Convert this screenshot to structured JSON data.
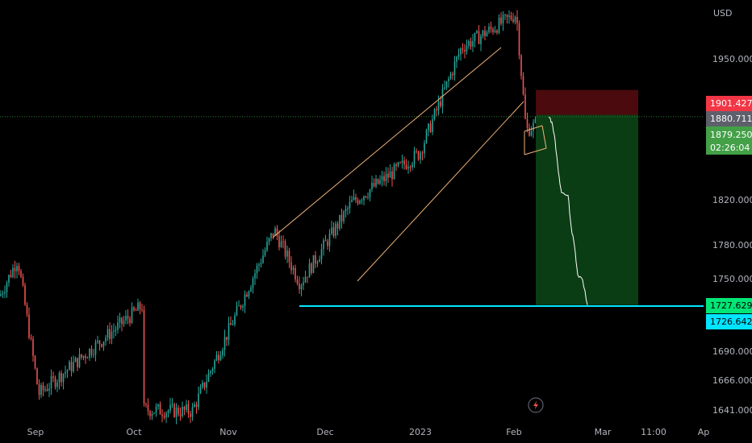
{
  "chart_data": {
    "type": "candlestick",
    "currency": "USD",
    "y_axis_ticks": [
      "1950.000",
      "1820.000",
      "1780.000",
      "1750.000",
      "1690.000",
      "1666.000",
      "1641.000"
    ],
    "x_axis_ticks": [
      "Sep",
      "Oct",
      "Nov",
      "Dec",
      "2023",
      "Feb",
      "Mar",
      "11:00",
      "Ap"
    ],
    "price_range": [
      1636,
      1968
    ],
    "anchors": [
      {
        "label": "Sep",
        "value": 1735
      },
      {
        "label": "Sep",
        "value": 1765
      },
      {
        "label": "Oct",
        "value": 1656
      },
      {
        "label": "Oct",
        "value": 1728
      },
      {
        "label": "Oct",
        "value": 1644
      },
      {
        "label": "Nov",
        "value": 1642
      },
      {
        "label": "Nov",
        "value": 1788
      },
      {
        "label": "Dec",
        "value": 1745
      },
      {
        "label": "Dec",
        "value": 1810
      },
      {
        "label": "2023",
        "value": 1850
      },
      {
        "label": "2023",
        "value": 1935
      },
      {
        "label": "Feb",
        "value": 1962
      },
      {
        "label": "Feb",
        "value": 1868
      },
      {
        "label": "Feb",
        "value": 1879
      }
    ],
    "projection": [
      1879,
      1875,
      1860,
      1835,
      1818,
      1816,
      1790,
      1775,
      1752,
      1748,
      1727.6
    ],
    "price_labels": {
      "stop_loss": "1901.427",
      "entry": "1880.711",
      "current": "1879.250",
      "countdown": "02:26:04",
      "take_profit": "1727.629",
      "support": "1726.642"
    },
    "levels": {
      "stop_loss": 1901.427,
      "entry": 1880.711,
      "current": 1879.25,
      "take_profit": 1727.629,
      "support": 1726.642
    },
    "colors": {
      "up": "#26a69a",
      "down": "#ef5350",
      "channel": "#f0b27a",
      "support_line": "#00e5ff",
      "stop_zone": "#4a0a0e",
      "profit_zone": "#0b3d14",
      "stop_badge": "#f23645",
      "entry_badge": "#5d606b",
      "current_badge": "#43a047",
      "tp_badge": "#00e676",
      "support_badge": "#00e5ff",
      "projection": "#ffffff",
      "grid": "#151515"
    },
    "grid": false,
    "legend": "none"
  },
  "icons": {
    "lightning": "lightning-icon"
  }
}
